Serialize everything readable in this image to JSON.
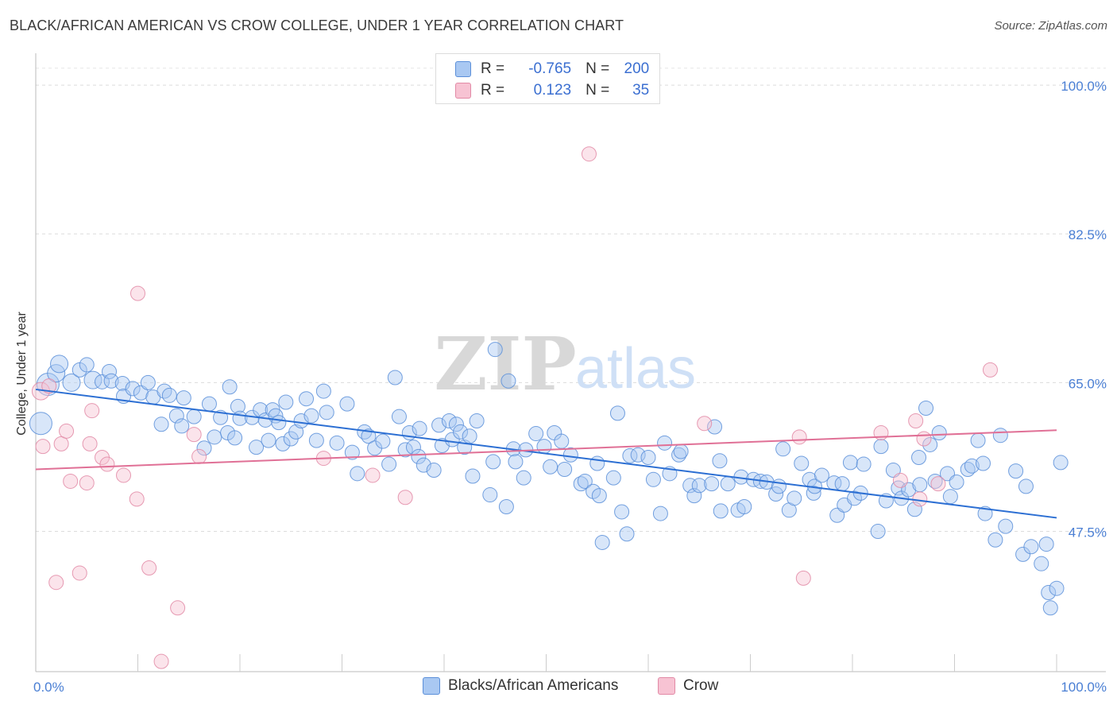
{
  "chart_data": {
    "type": "scatter",
    "title": "BLACK/AFRICAN AMERICAN VS CROW COLLEGE, UNDER 1 YEAR CORRELATION CHART",
    "source": "Source: ZipAtlas.com",
    "ylabel": "College, Under 1 year",
    "watermark": {
      "zip": "ZIP",
      "atlas": "atlas"
    },
    "xlim": [
      0,
      100
    ],
    "ylim": [
      31,
      103
    ],
    "x_ticks": [
      {
        "value": 0,
        "label": "0.0%"
      },
      {
        "value": 100,
        "label": "100.0%"
      }
    ],
    "y_ticks": [
      {
        "value": 100,
        "label": "100.0%"
      },
      {
        "value": 82.5,
        "label": "82.5%"
      },
      {
        "value": 65,
        "label": "65.0%"
      },
      {
        "value": 47.5,
        "label": "47.5%"
      }
    ],
    "colors": {
      "blue_fill": "#a9c8f2",
      "blue_stroke": "#5b8fd9",
      "blue_line": "#2c6fd3",
      "pink_fill": "#f7c3d3",
      "pink_stroke": "#e28aa6",
      "pink_line": "#e07096",
      "axis_text": "#4a7fd4"
    },
    "legend": {
      "rows": [
        {
          "r_label": "R =",
          "r_value": "-0.765",
          "n_label": "N =",
          "n_value": "200",
          "color": "blue"
        },
        {
          "r_label": "R =",
          "r_value": "0.123",
          "n_label": "N =",
          "n_value": "35",
          "color": "pink"
        }
      ]
    },
    "series": [
      {
        "name": "Blacks/African Americans",
        "color": "blue",
        "trend": [
          [
            0,
            64.2
          ],
          [
            100,
            49.1
          ]
        ],
        "points": [
          [
            0.5,
            60.2,
            14
          ],
          [
            1.2,
            64.8,
            14
          ],
          [
            2,
            66.1,
            11
          ],
          [
            2.3,
            67.2,
            11
          ],
          [
            3.5,
            65,
            11
          ],
          [
            4.3,
            66.5,
            9
          ],
          [
            5,
            67.1,
            9
          ],
          [
            5.6,
            65.3,
            11
          ],
          [
            6.5,
            65.1,
            9
          ],
          [
            7.2,
            66.3,
            9
          ],
          [
            7.4,
            65.2,
            9
          ],
          [
            8.5,
            64.9,
            9
          ],
          [
            8.6,
            63.4,
            9
          ],
          [
            9.5,
            64.3,
            9
          ],
          [
            10.3,
            63.8,
            9
          ],
          [
            11,
            65,
            9
          ],
          [
            11.5,
            63.3,
            9
          ],
          [
            12.3,
            60.1,
            9
          ],
          [
            12.6,
            64,
            9
          ],
          [
            13.1,
            63.5,
            9
          ],
          [
            13.8,
            61.1,
            9
          ],
          [
            14.3,
            59.9,
            9
          ],
          [
            14.5,
            63.2,
            9
          ],
          [
            15.5,
            61,
            9
          ],
          [
            16.5,
            57.3,
            9
          ],
          [
            17,
            62.5,
            9
          ],
          [
            17.5,
            58.6,
            9
          ],
          [
            18.1,
            60.9,
            9
          ],
          [
            18.8,
            59.1,
            9
          ],
          [
            19,
            64.5,
            9
          ],
          [
            19.5,
            58.5,
            9
          ],
          [
            19.8,
            62.2,
            9
          ],
          [
            20,
            60.8,
            9
          ],
          [
            21.2,
            60.9,
            9
          ],
          [
            21.6,
            57.4,
            9
          ],
          [
            22,
            61.8,
            9
          ],
          [
            22.5,
            60.6,
            9
          ],
          [
            22.8,
            58.2,
            9
          ],
          [
            23.2,
            61.8,
            9
          ],
          [
            23.5,
            61.1,
            9
          ],
          [
            23.8,
            60.3,
            9
          ],
          [
            24.2,
            57.8,
            9
          ],
          [
            24.5,
            62.7,
            9
          ],
          [
            25,
            58.4,
            9
          ],
          [
            25.5,
            59.2,
            9
          ],
          [
            26,
            60.5,
            9
          ],
          [
            26.5,
            63.1,
            9
          ],
          [
            27,
            61.1,
            9
          ],
          [
            27.5,
            58.2,
            9
          ],
          [
            28.2,
            64,
            9
          ],
          [
            28.5,
            61.5,
            9
          ],
          [
            29.5,
            57.9,
            9
          ],
          [
            30.5,
            62.5,
            9
          ],
          [
            31,
            56.8,
            9
          ],
          [
            31.5,
            54.3,
            9
          ],
          [
            32.2,
            59.2,
            9
          ],
          [
            32.6,
            58.7,
            9
          ],
          [
            33.2,
            57.3,
            9
          ],
          [
            34,
            58.1,
            9
          ],
          [
            34.6,
            55.4,
            9
          ],
          [
            35.2,
            65.6,
            9
          ],
          [
            35.6,
            61,
            9
          ],
          [
            36.2,
            57.1,
            9
          ],
          [
            36.6,
            59.1,
            9
          ],
          [
            37,
            57.4,
            9
          ],
          [
            37.5,
            56.3,
            9
          ],
          [
            37.6,
            59.6,
            9
          ],
          [
            38,
            55.3,
            9
          ],
          [
            39,
            54.7,
            9
          ],
          [
            39.5,
            60,
            9
          ],
          [
            39.8,
            57.6,
            9
          ],
          [
            40.5,
            60.5,
            9
          ],
          [
            40.8,
            58.3,
            9
          ],
          [
            41.2,
            60.1,
            9
          ],
          [
            41.6,
            59.2,
            9
          ],
          [
            42,
            57.4,
            9
          ],
          [
            42.5,
            58.7,
            9
          ],
          [
            42.8,
            54,
            9
          ],
          [
            43.2,
            60.5,
            9
          ],
          [
            44.5,
            51.8,
            9
          ],
          [
            44.8,
            55.7,
            9
          ],
          [
            45,
            68.9,
            9
          ],
          [
            46.1,
            50.4,
            9
          ],
          [
            46.3,
            65.2,
            9
          ],
          [
            46.8,
            57.2,
            9
          ],
          [
            47,
            55.7,
            9
          ],
          [
            47.8,
            53.8,
            9
          ],
          [
            48,
            57.1,
            9
          ],
          [
            49,
            59,
            9
          ],
          [
            49.8,
            57.5,
            9
          ],
          [
            50.4,
            55.1,
            9
          ],
          [
            50.8,
            59.1,
            9
          ],
          [
            51.5,
            58.1,
            9
          ],
          [
            51.8,
            54.8,
            9
          ],
          [
            52.4,
            56.5,
            9
          ],
          [
            53.4,
            53.1,
            9
          ],
          [
            53.8,
            53.4,
            9
          ],
          [
            54.6,
            52.2,
            9
          ],
          [
            55,
            55.5,
            9
          ],
          [
            55.2,
            51.7,
            9
          ],
          [
            55.5,
            46.2,
            9
          ],
          [
            56.6,
            53.8,
            9
          ],
          [
            57,
            61.4,
            9
          ],
          [
            57.4,
            49.8,
            9
          ],
          [
            57.9,
            47.2,
            9
          ],
          [
            58.2,
            56.4,
            9
          ],
          [
            59,
            56.5,
            9
          ],
          [
            60,
            56.2,
            9
          ],
          [
            60.5,
            53.6,
            9
          ],
          [
            61.2,
            49.6,
            9
          ],
          [
            61.6,
            57.9,
            9
          ],
          [
            62.1,
            54.3,
            9
          ],
          [
            63,
            56.5,
            9
          ],
          [
            63.2,
            56.9,
            9
          ],
          [
            64.1,
            52.9,
            9
          ],
          [
            64.5,
            51.7,
            9
          ],
          [
            65,
            52.9,
            9
          ],
          [
            66.2,
            53.1,
            9
          ],
          [
            66.5,
            59.8,
            9
          ],
          [
            67,
            55.8,
            9
          ],
          [
            67.1,
            49.9,
            9
          ],
          [
            67.8,
            53.1,
            9
          ],
          [
            68.8,
            50,
            9
          ],
          [
            69.1,
            53.9,
            9
          ],
          [
            69.4,
            50.4,
            9
          ],
          [
            70.3,
            53.6,
            9
          ],
          [
            71,
            53.4,
            9
          ],
          [
            71.6,
            53.3,
            9
          ],
          [
            72.5,
            51.9,
            9
          ],
          [
            72.8,
            52.8,
            9
          ],
          [
            73.2,
            57.2,
            9
          ],
          [
            73.8,
            50,
            9
          ],
          [
            74.3,
            51.4,
            9
          ],
          [
            75,
            55.5,
            9
          ],
          [
            75.8,
            53.6,
            9
          ],
          [
            76.2,
            52,
            9
          ],
          [
            76.3,
            52.8,
            9
          ],
          [
            77,
            54.1,
            9
          ],
          [
            78.2,
            53.2,
            9
          ],
          [
            78.5,
            49.4,
            9
          ],
          [
            79,
            53.1,
            9
          ],
          [
            79.2,
            50.6,
            9
          ],
          [
            79.8,
            55.6,
            9
          ],
          [
            80.2,
            51.4,
            9
          ],
          [
            80.8,
            52,
            9
          ],
          [
            81.1,
            55.4,
            9
          ],
          [
            82.5,
            47.5,
            9
          ],
          [
            82.8,
            57.5,
            9
          ],
          [
            83.3,
            51.1,
            9
          ],
          [
            84,
            54.7,
            9
          ],
          [
            84.5,
            52.6,
            9
          ],
          [
            84.8,
            51.4,
            9
          ],
          [
            85.5,
            52.4,
            9
          ],
          [
            86.1,
            50.1,
            9
          ],
          [
            86.5,
            56.2,
            9
          ],
          [
            86.6,
            53,
            9
          ],
          [
            87.2,
            62,
            9
          ],
          [
            87.6,
            57.7,
            9
          ],
          [
            88.1,
            53.4,
            9
          ],
          [
            88.5,
            59.1,
            9
          ],
          [
            89.3,
            54.3,
            9
          ],
          [
            89.6,
            51.6,
            9
          ],
          [
            90.2,
            53.3,
            9
          ],
          [
            91.3,
            54.8,
            9
          ],
          [
            91.7,
            55.2,
            9
          ],
          [
            92.3,
            58.2,
            9
          ],
          [
            92.8,
            55.5,
            9
          ],
          [
            93,
            49.6,
            9
          ],
          [
            94,
            46.5,
            9
          ],
          [
            94.5,
            58.8,
            9
          ],
          [
            95,
            48.1,
            9
          ],
          [
            96,
            54.6,
            9
          ],
          [
            96.7,
            44.8,
            9
          ],
          [
            97,
            52.8,
            9
          ],
          [
            97.5,
            45.7,
            9
          ],
          [
            98.5,
            43.7,
            9
          ],
          [
            99,
            46,
            9
          ],
          [
            99.2,
            40.3,
            9
          ],
          [
            99.4,
            38.5,
            9
          ],
          [
            100,
            40.8,
            9
          ],
          [
            100.4,
            55.6,
            9
          ]
        ]
      },
      {
        "name": "Crow",
        "color": "pink",
        "trend": [
          [
            0,
            54.8
          ],
          [
            100,
            59.4
          ]
        ],
        "points": [
          [
            0.5,
            64,
            11
          ],
          [
            0.7,
            57.5,
            9
          ],
          [
            1.3,
            64.6,
            9
          ],
          [
            2,
            41.5,
            9
          ],
          [
            2.5,
            57.8,
            9
          ],
          [
            3,
            59.3,
            9
          ],
          [
            3.4,
            53.4,
            9
          ],
          [
            4.3,
            42.6,
            9
          ],
          [
            5,
            53.2,
            9
          ],
          [
            5.3,
            57.8,
            9
          ],
          [
            5.5,
            61.7,
            9
          ],
          [
            6.5,
            56.2,
            9
          ],
          [
            7,
            55.4,
            9
          ],
          [
            8.6,
            54.1,
            9
          ],
          [
            9.9,
            51.3,
            9
          ],
          [
            10,
            75.5,
            9
          ],
          [
            11.1,
            43.2,
            9
          ],
          [
            12.3,
            32.2,
            9
          ],
          [
            13.9,
            38.5,
            9
          ],
          [
            15.5,
            58.9,
            9
          ],
          [
            16,
            56.3,
            9
          ],
          [
            28.2,
            56.1,
            9
          ],
          [
            33,
            54.1,
            9
          ],
          [
            36.2,
            51.5,
            9
          ],
          [
            54.2,
            91.9,
            9
          ],
          [
            65.5,
            60.2,
            9
          ],
          [
            74.8,
            58.6,
            9
          ],
          [
            75.2,
            42,
            9
          ],
          [
            82.8,
            59.1,
            9
          ],
          [
            84.7,
            53.5,
            9
          ],
          [
            86.2,
            60.5,
            9
          ],
          [
            86.6,
            51.3,
            9
          ],
          [
            87,
            58.4,
            9
          ],
          [
            88.4,
            53.1,
            9
          ],
          [
            93.5,
            66.5,
            9
          ]
        ]
      }
    ]
  },
  "bottom_legend": {
    "items": [
      {
        "label": "Blacks/African Americans",
        "color": "blue"
      },
      {
        "label": "Crow",
        "color": "pink"
      }
    ]
  }
}
